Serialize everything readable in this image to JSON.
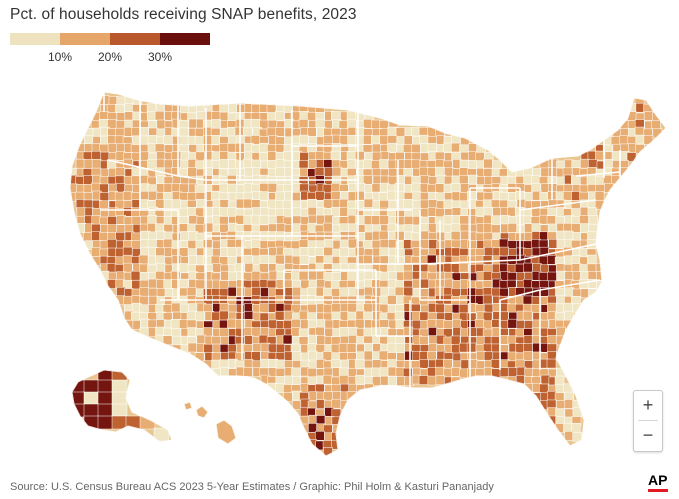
{
  "title": "Pct. of households receiving SNAP benefits, 2023",
  "legend": {
    "colors": [
      "#eee2bf",
      "#e6a66a",
      "#b9582d",
      "#6b0f0c"
    ],
    "ticks": [
      "10%",
      "20%",
      "30%"
    ]
  },
  "map": {
    "colors": {
      "c1": "#f1e6c4",
      "c2": "#e8ad72",
      "c3": "#bf6232",
      "c4": "#751510",
      "border": "#ffffff",
      "land": "#e9c58f"
    }
  },
  "zoom": {
    "in_label": "+",
    "out_label": "−"
  },
  "source": "Source: U.S. Census Bureau ACS 2023 5-Year Estimates / Graphic: Phil Holm & Kasturi Pananjady",
  "logo": "AP"
}
